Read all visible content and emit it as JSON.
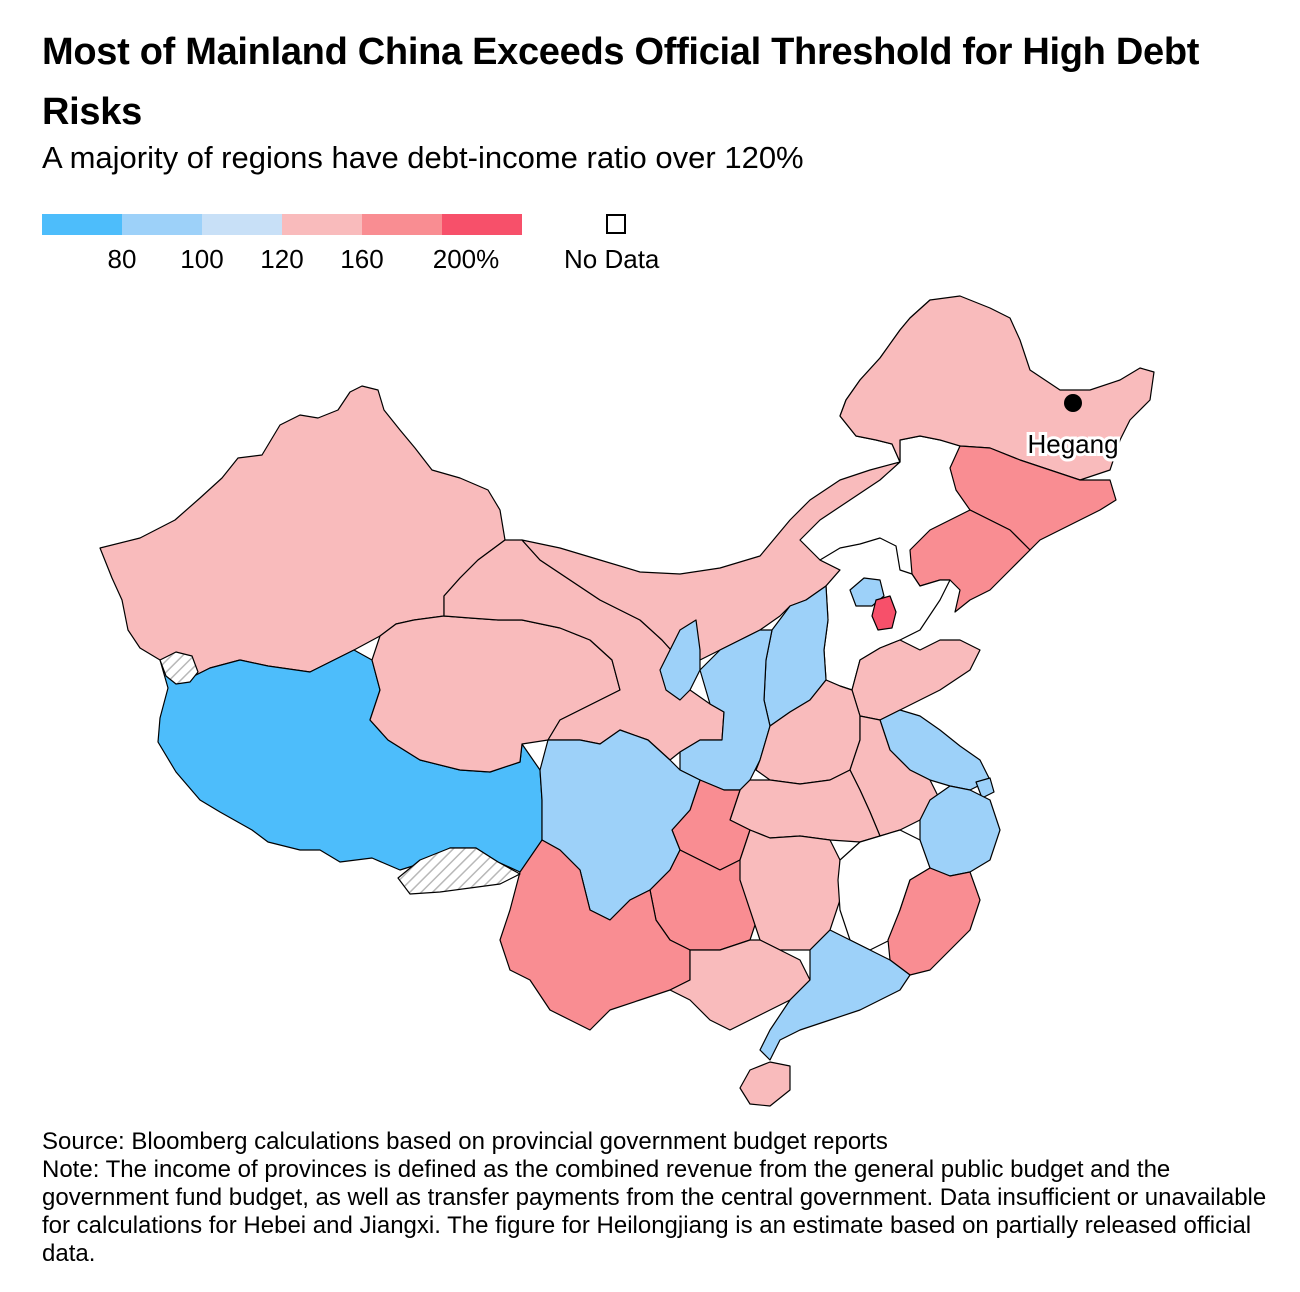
{
  "title": "Most of Mainland China Exceeds Official Threshold for High Debt Risks",
  "subtitle": "A majority of regions have debt-income ratio over 120%",
  "legend": {
    "colors": [
      "#4dbdfb",
      "#9dd1f9",
      "#c8e0f7",
      "#f9bbbc",
      "#f98d92",
      "#f7506a"
    ],
    "ticks": [
      "80",
      "100",
      "120",
      "160",
      "200%"
    ],
    "no_data_label": "No Data",
    "no_data_color": "#ffffff"
  },
  "map": {
    "city_label": "Hegang",
    "border_color": "#000000"
  },
  "footer": {
    "source": "Source: Bloomberg calculations based on provincial government budget reports",
    "note": "Note: The income of provinces is defined as the combined revenue from the general public budget and the government fund budget, as well as transfer payments from the central government. Data insufficient or unavailable for calculations for Hebei and Jiangxi. The figure for Heilongjiang is an estimate based on partially released official data."
  }
}
